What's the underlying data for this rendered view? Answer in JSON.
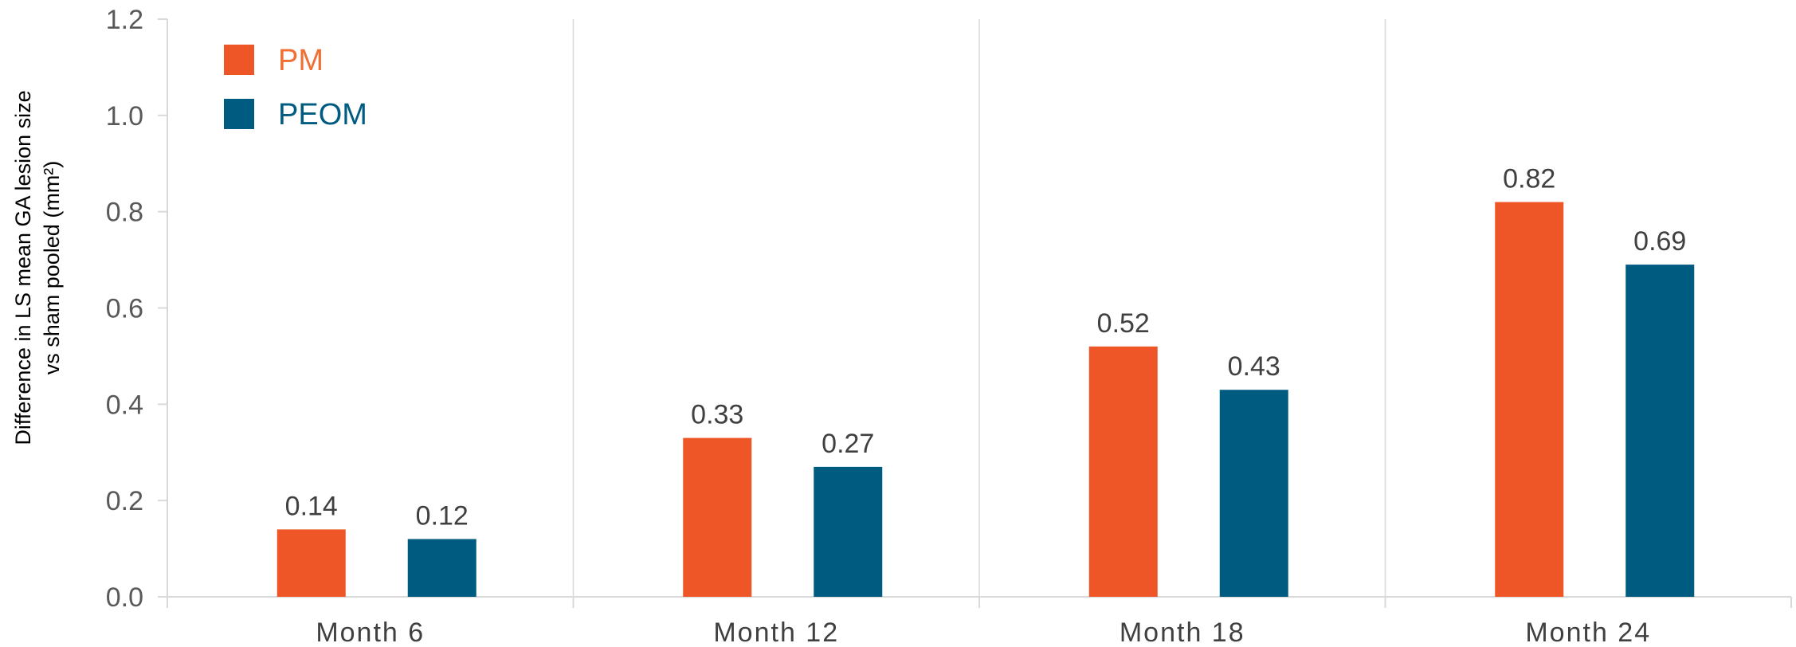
{
  "chart_data": {
    "type": "bar",
    "categories": [
      "Month 6",
      "Month 12",
      "Month 18",
      "Month 24"
    ],
    "series": [
      {
        "name": "PM",
        "values": [
          0.14,
          0.33,
          0.52,
          0.82
        ],
        "value_labels": [
          "0.14",
          "0.33",
          "0.52",
          "0.82"
        ]
      },
      {
        "name": "PEOM",
        "values": [
          0.12,
          0.27,
          0.43,
          0.69
        ],
        "value_labels": [
          "0.12",
          "0.27",
          "0.43",
          "0.69"
        ]
      }
    ],
    "title": "",
    "xlabel": "",
    "ylabel_lines": [
      "Difference in LS mean GA lesion size",
      "vs sham pooled (mm²)"
    ],
    "ylim": [
      0,
      1.2
    ],
    "yticks": [
      0.0,
      0.2,
      0.4,
      0.6,
      0.8,
      1.0,
      1.2
    ],
    "ytick_labels": [
      "0.0",
      "0.2",
      "0.4",
      "0.6",
      "0.8",
      "1.0",
      "1.2"
    ],
    "grid": "vertical separators between categories",
    "legend_position": "top-left"
  },
  "colors": {
    "series": [
      "#EE5527",
      "#005B80"
    ],
    "legend_text": [
      "#F07033",
      "#005B80"
    ],
    "axis": "#D9D9D9"
  }
}
